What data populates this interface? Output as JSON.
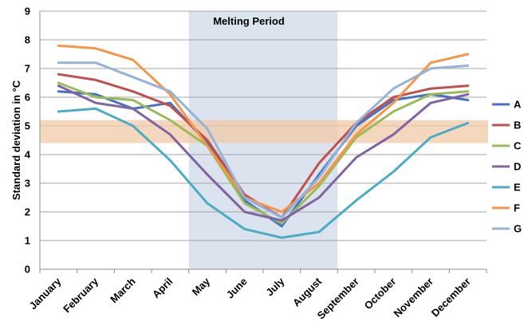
{
  "chart_data": {
    "type": "line",
    "title": "",
    "xlabel": "",
    "ylabel": "Standard deviation in °C",
    "ylim": [
      0,
      9
    ],
    "yticks": [
      "0",
      "1",
      "2",
      "3",
      "4",
      "5",
      "6",
      "7",
      "8",
      "9"
    ],
    "grid": "horizontal",
    "legend_position": "right",
    "categories": [
      "January",
      "February",
      "March",
      "April",
      "May",
      "June",
      "July",
      "August",
      "September",
      "October",
      "November",
      "December"
    ],
    "shaded_period": {
      "label": "Melting Period",
      "from": "May",
      "to": "September",
      "color": "#dbe3ef"
    },
    "band": {
      "from": 4.4,
      "to": 5.2,
      "color": "#f2c9a8"
    },
    "series": [
      {
        "name": "A",
        "color": "#4472c4",
        "values": [
          6.2,
          6.1,
          5.6,
          5.8,
          4.4,
          2.4,
          1.5,
          3.3,
          5.0,
          5.9,
          6.1,
          5.9
        ]
      },
      {
        "name": "B",
        "color": "#c0504d",
        "values": [
          6.8,
          6.6,
          6.2,
          5.7,
          4.5,
          2.6,
          1.8,
          3.7,
          5.1,
          6.0,
          6.3,
          6.4
        ]
      },
      {
        "name": "C",
        "color": "#9bbb59",
        "values": [
          6.5,
          6.0,
          5.9,
          5.2,
          4.3,
          2.3,
          1.6,
          2.9,
          4.6,
          5.5,
          6.1,
          6.2
        ]
      },
      {
        "name": "D",
        "color": "#8064a2",
        "values": [
          6.4,
          5.8,
          5.6,
          4.7,
          3.3,
          2.0,
          1.7,
          2.5,
          3.9,
          4.7,
          5.8,
          6.1
        ]
      },
      {
        "name": "E",
        "color": "#4bacc6",
        "values": [
          5.5,
          5.6,
          5.0,
          3.8,
          2.3,
          1.4,
          1.1,
          1.3,
          2.4,
          3.4,
          4.6,
          5.1
        ]
      },
      {
        "name": "F",
        "color": "#f79646",
        "values": [
          7.8,
          7.7,
          7.3,
          6.1,
          4.3,
          2.5,
          2.0,
          3.0,
          4.7,
          5.8,
          7.2,
          7.5
        ]
      },
      {
        "name": "G",
        "color": "#95b3d7",
        "values": [
          7.2,
          7.2,
          6.7,
          6.2,
          4.9,
          2.5,
          1.8,
          3.2,
          5.1,
          6.3,
          7.0,
          7.1
        ]
      }
    ]
  }
}
